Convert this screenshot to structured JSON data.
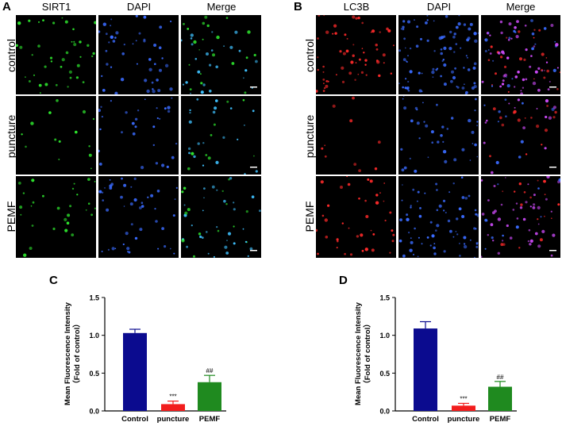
{
  "panels": {
    "A": {
      "letter": "A",
      "columns": [
        "SIRT1",
        "DAPI",
        "Merge"
      ],
      "rows": [
        "control",
        "puncture",
        "PEMF"
      ]
    },
    "B": {
      "letter": "B",
      "columns": [
        "LC3B",
        "DAPI",
        "Merge"
      ],
      "rows": [
        "control",
        "puncture",
        "PEMF"
      ]
    },
    "C": {
      "letter": "C"
    },
    "D": {
      "letter": "D"
    }
  },
  "colors": {
    "sirt1_stain": "#2ee82e",
    "lc3b_stain": "#ff2a2a",
    "dapi_stain": "#3a6bff",
    "merge_magenta": "#d24cff",
    "control_bar": "#0b0b8f",
    "puncture_bar": "#f21d1d",
    "pemf_bar": "#1f8a1f"
  },
  "chart_data": [
    {
      "type": "bar",
      "panel": "C",
      "ylabel_line1": "Mean Fluorescence Intensity",
      "ylabel_line2": "（Fold of control）",
      "categories": [
        "Control",
        "puncture",
        "PEMF"
      ],
      "values": [
        1.03,
        0.09,
        0.38
      ],
      "errors": [
        0.05,
        0.04,
        0.09
      ],
      "annotations": [
        "",
        "***",
        "##"
      ],
      "bar_colors": [
        "#0b0b8f",
        "#f21d1d",
        "#1f8a1f"
      ],
      "ylim": [
        0,
        1.5
      ],
      "yticks": [
        "0.0",
        "0.5",
        "1.0",
        "1.5"
      ]
    },
    {
      "type": "bar",
      "panel": "D",
      "ylabel_line1": "Mean Fluorescence Intensity",
      "ylabel_line2": "（Fold of control）",
      "categories": [
        "Control",
        "puncture",
        "PEMF"
      ],
      "values": [
        1.09,
        0.07,
        0.32
      ],
      "errors": [
        0.09,
        0.03,
        0.07
      ],
      "annotations": [
        "",
        "***",
        "##"
      ],
      "bar_colors": [
        "#0b0b8f",
        "#f21d1d",
        "#1f8a1f"
      ],
      "ylim": [
        0,
        1.5
      ],
      "yticks": [
        "0.0",
        "0.5",
        "1.0",
        "1.5"
      ]
    }
  ]
}
